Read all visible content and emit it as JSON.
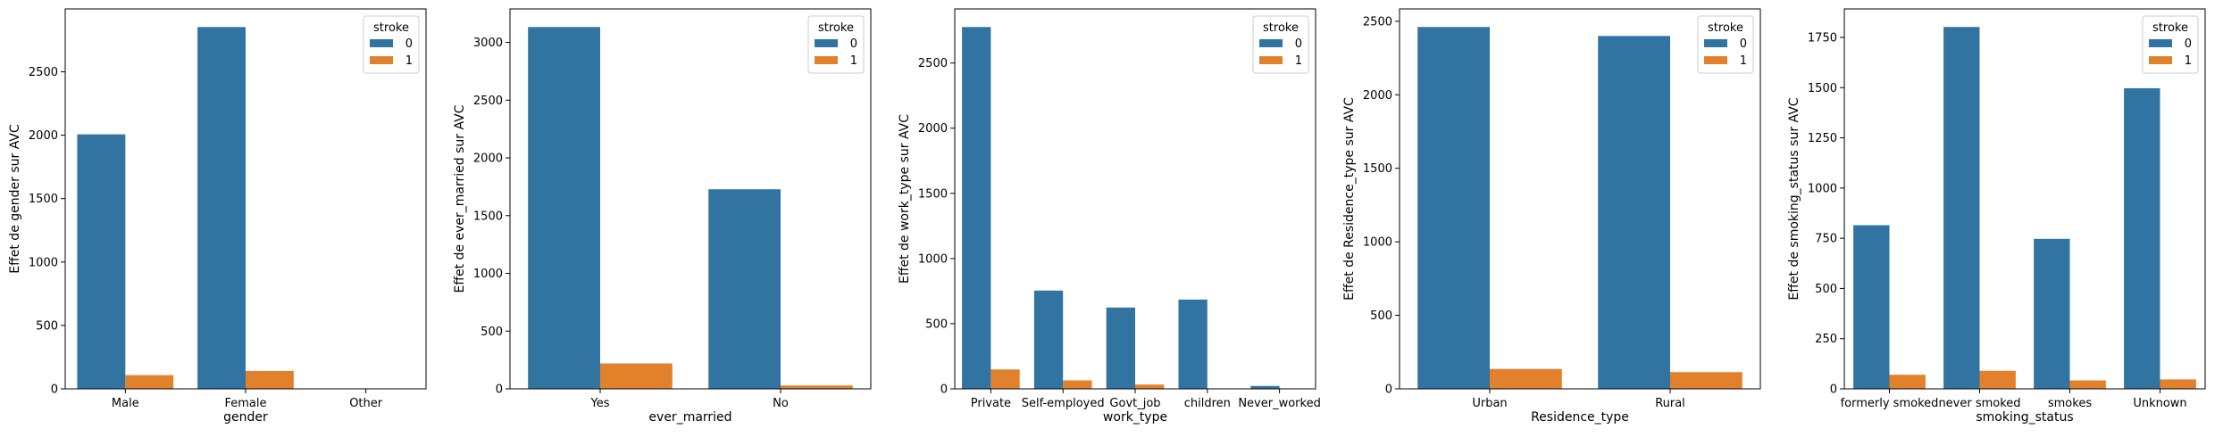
{
  "colors": {
    "stroke_0": "#3274a1",
    "stroke_1": "#e1812c"
  },
  "chart_data": [
    {
      "type": "bar",
      "xlabel": "gender",
      "ylabel": "Effet de gender sur AVC",
      "categories": [
        "Male",
        "Female",
        "Other"
      ],
      "series": [
        {
          "name": "0",
          "values": [
            2007,
            2853,
            1
          ]
        },
        {
          "name": "1",
          "values": [
            108,
            141,
            0
          ]
        }
      ],
      "ylim": [
        0,
        2996
      ],
      "yticks": [
        0,
        500,
        1000,
        1500,
        2000,
        2500
      ],
      "legend": {
        "title": "stroke",
        "position": "top-right",
        "entries": [
          "0",
          "1"
        ]
      }
    },
    {
      "type": "bar",
      "xlabel": "ever_married",
      "ylabel": "Effet de ever_married sur AVC",
      "categories": [
        "Yes",
        "No"
      ],
      "series": [
        {
          "name": "0",
          "values": [
            3133,
            1728
          ]
        },
        {
          "name": "1",
          "values": [
            220,
            29
          ]
        }
      ],
      "ylim": [
        0,
        3290
      ],
      "yticks": [
        0,
        500,
        1000,
        1500,
        2000,
        2500,
        3000
      ],
      "legend": {
        "title": "stroke",
        "position": "top-right",
        "entries": [
          "0",
          "1"
        ]
      }
    },
    {
      "type": "bar",
      "xlabel": "work_type",
      "ylabel": "Effet de work_type sur AVC",
      "categories": [
        "Private",
        "Self-employed",
        "Govt_job",
        "children",
        "Never_worked"
      ],
      "series": [
        {
          "name": "0",
          "values": [
            2776,
            754,
            624,
            685,
            22
          ]
        },
        {
          "name": "1",
          "values": [
            149,
            65,
            33,
            2,
            0
          ]
        }
      ],
      "ylim": [
        0,
        2915
      ],
      "yticks": [
        0,
        500,
        1000,
        1500,
        2000,
        2500
      ],
      "legend": {
        "title": "stroke",
        "position": "top-right",
        "entries": [
          "0",
          "1"
        ]
      }
    },
    {
      "type": "bar",
      "xlabel": "Residence_type",
      "ylabel": "Effet de Residence_type sur AVC",
      "categories": [
        "Urban",
        "Rural"
      ],
      "series": [
        {
          "name": "0",
          "values": [
            2461,
            2400
          ]
        },
        {
          "name": "1",
          "values": [
            135,
            114
          ]
        }
      ],
      "ylim": [
        0,
        2584
      ],
      "yticks": [
        0,
        500,
        1000,
        1500,
        2000,
        2500
      ],
      "legend": {
        "title": "stroke",
        "position": "top-right",
        "entries": [
          "0",
          "1"
        ]
      }
    },
    {
      "type": "bar",
      "xlabel": "smoking_status",
      "ylabel": "Effet de smoking_status sur AVC",
      "categories": [
        "formerly smoked",
        "never smoked",
        "smokes",
        "Unknown"
      ],
      "series": [
        {
          "name": "0",
          "values": [
            815,
            1802,
            747,
            1497
          ]
        },
        {
          "name": "1",
          "values": [
            70,
            90,
            42,
            47
          ]
        }
      ],
      "ylim": [
        0,
        1892
      ],
      "yticks": [
        0,
        250,
        500,
        750,
        1000,
        1250,
        1500,
        1750
      ],
      "legend": {
        "title": "stroke",
        "position": "top-right",
        "entries": [
          "0",
          "1"
        ]
      }
    }
  ]
}
